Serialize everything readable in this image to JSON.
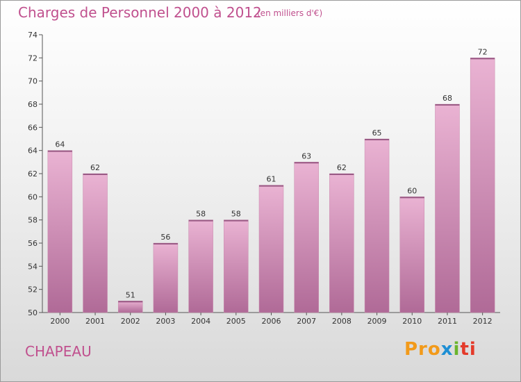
{
  "chart_data": {
    "type": "bar",
    "title": "Charges de Personnel 2000 à 2012",
    "subtitle": "(en milliers d'€)",
    "categories": [
      "2000",
      "2001",
      "2002",
      "2003",
      "2004",
      "2005",
      "2006",
      "2007",
      "2008",
      "2009",
      "2010",
      "2011",
      "2012"
    ],
    "values": [
      64,
      62,
      51,
      56,
      58,
      58,
      61,
      63,
      62,
      65,
      60,
      68,
      72
    ],
    "xlabel": "",
    "ylabel": "",
    "ylim": [
      50,
      74
    ],
    "yticks": [
      50,
      52,
      54,
      56,
      58,
      60,
      62,
      64,
      66,
      68,
      70,
      72,
      74
    ],
    "grid": false,
    "legend": "none",
    "bar_color": "#d98bb8",
    "bar_color_light": "#eab3d3",
    "bar_color_dark": "#b06a97"
  },
  "footer": {
    "commune": "CHAPEAU",
    "brand": [
      "Pro",
      "x",
      "i",
      "ti"
    ]
  }
}
